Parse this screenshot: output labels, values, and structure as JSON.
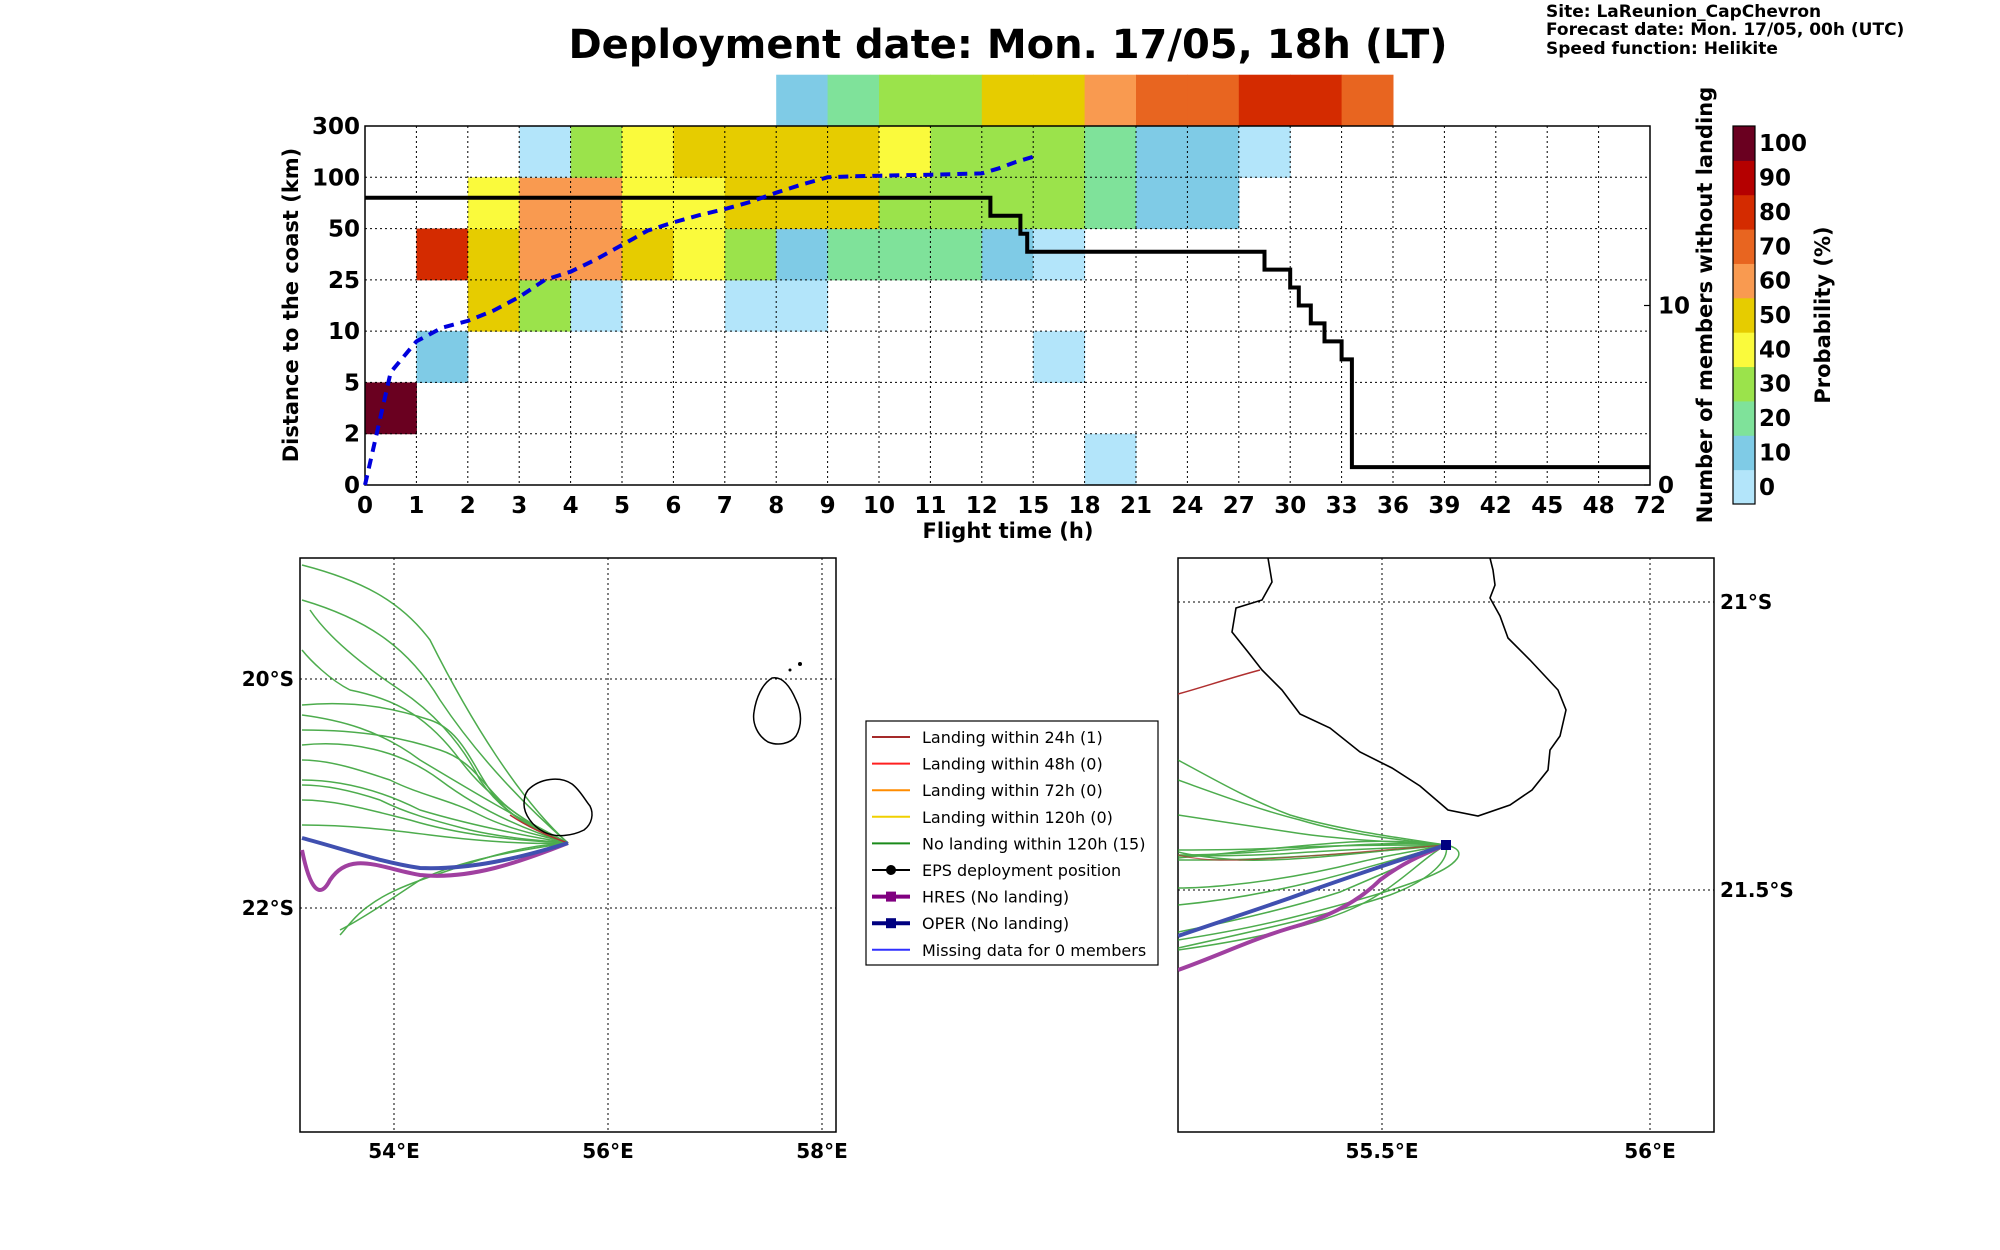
{
  "header": {
    "title": "Deployment date: Mon. 17/05, 18h (LT)",
    "site": "Site: LaReunion_CapChevron",
    "forecast": "Forecast date: Mon. 17/05, 00h (UTC)",
    "speed": "Speed function: Helikite"
  },
  "chart_data": {
    "type": "heatmap",
    "xlabel": "Flight time (h)",
    "ylabel": "Distance to the coast (km)",
    "y2label": "Number of members without landing",
    "colorbar_label": "Probability (%)",
    "x_ticks": [
      "0",
      "1",
      "2",
      "3",
      "4",
      "5",
      "6",
      "7",
      "8",
      "9",
      "10",
      "11",
      "12",
      "15",
      "18",
      "21",
      "24",
      "27",
      "30",
      "33",
      "36",
      "39",
      "42",
      "45",
      "48",
      "72"
    ],
    "y_ticks": [
      "0",
      "2",
      "5",
      "10",
      "25",
      "50",
      "100",
      "300"
    ],
    "y2_ticks": [
      "0",
      "10"
    ],
    "colorbar_ticks": [
      "0",
      "10",
      "20",
      "30",
      "40",
      "50",
      "60",
      "70",
      "80",
      "90",
      "100"
    ],
    "colorbar_colors": [
      "#b3e5fa",
      "#7fcbe6",
      "#7fe29a",
      "#9be34b",
      "#fafa3c",
      "#e6cc00",
      "#f99a50",
      "#e86520",
      "#d42b00",
      "#b50000",
      "#6a0020"
    ],
    "grid": true,
    "cells": [
      {
        "x": 0,
        "y": 1,
        "p": 100
      },
      {
        "x": 1,
        "y": 2,
        "p": 15
      },
      {
        "x": 1,
        "y": 4,
        "p": 85
      },
      {
        "x": 2,
        "y": 3,
        "p": 55
      },
      {
        "x": 2,
        "y": 4,
        "p": 55
      },
      {
        "x": 2,
        "y": 5,
        "p": 45
      },
      {
        "x": 3,
        "y": 3,
        "p": 35
      },
      {
        "x": 3,
        "y": 4,
        "p": 65
      },
      {
        "x": 3,
        "y": 5,
        "p": 65
      },
      {
        "x": 3,
        "y": 6,
        "p": 5
      },
      {
        "x": 4,
        "y": 3,
        "p": 5
      },
      {
        "x": 4,
        "y": 4,
        "p": 65
      },
      {
        "x": 4,
        "y": 5,
        "p": 65
      },
      {
        "x": 4,
        "y": 6,
        "p": 35
      },
      {
        "x": 5,
        "y": 4,
        "p": 55
      },
      {
        "x": 5,
        "y": 5,
        "p": 45
      },
      {
        "x": 5,
        "y": 6,
        "p": 45
      },
      {
        "x": 6,
        "y": 4,
        "p": 45
      },
      {
        "x": 6,
        "y": 5,
        "p": 45
      },
      {
        "x": 6,
        "y": 6,
        "p": 55
      },
      {
        "x": 7,
        "y": 3,
        "p": 5
      },
      {
        "x": 7,
        "y": 4,
        "p": 35
      },
      {
        "x": 7,
        "y": 5,
        "p": 55
      },
      {
        "x": 7,
        "y": 6,
        "p": 55
      },
      {
        "x": 8,
        "y": 3,
        "p": 5
      },
      {
        "x": 8,
        "y": 4,
        "p": 15
      },
      {
        "x": 8,
        "y": 5,
        "p": 55
      },
      {
        "x": 8,
        "y": 6,
        "p": 55
      },
      {
        "x": 8,
        "y": 7,
        "p": 15
      },
      {
        "x": 9,
        "y": 4,
        "p": 25
      },
      {
        "x": 9,
        "y": 5,
        "p": 55
      },
      {
        "x": 9,
        "y": 6,
        "p": 55
      },
      {
        "x": 9,
        "y": 7,
        "p": 25
      },
      {
        "x": 10,
        "y": 4,
        "p": 25
      },
      {
        "x": 10,
        "y": 5,
        "p": 35
      },
      {
        "x": 10,
        "y": 6,
        "p": 45
      },
      {
        "x": 10,
        "y": 7,
        "p": 35
      },
      {
        "x": 11,
        "y": 4,
        "p": 25
      },
      {
        "x": 11,
        "y": 5,
        "p": 35
      },
      {
        "x": 11,
        "y": 6,
        "p": 35
      },
      {
        "x": 11,
        "y": 7,
        "p": 35
      },
      {
        "x": 12,
        "y": 4,
        "p": 15
      },
      {
        "x": 12,
        "y": 5,
        "p": 35
      },
      {
        "x": 12,
        "y": 6,
        "p": 35
      },
      {
        "x": 12,
        "y": 7,
        "p": 55
      },
      {
        "x": 13,
        "y": 2,
        "p": 5
      },
      {
        "x": 13,
        "y": 4,
        "p": 5
      },
      {
        "x": 13,
        "y": 5,
        "p": 35
      },
      {
        "x": 13,
        "y": 6,
        "p": 35
      },
      {
        "x": 13,
        "y": 7,
        "p": 55
      },
      {
        "x": 14,
        "y": 0,
        "p": 5
      },
      {
        "x": 14,
        "y": 5,
        "p": 25
      },
      {
        "x": 14,
        "y": 6,
        "p": 25
      },
      {
        "x": 14,
        "y": 7,
        "p": 65
      },
      {
        "x": 15,
        "y": 5,
        "p": 15
      },
      {
        "x": 15,
        "y": 6,
        "p": 15
      },
      {
        "x": 15,
        "y": 7,
        "p": 75
      },
      {
        "x": 16,
        "y": 5,
        "p": 15
      },
      {
        "x": 16,
        "y": 6,
        "p": 15
      },
      {
        "x": 16,
        "y": 7,
        "p": 75
      },
      {
        "x": 17,
        "y": 6,
        "p": 5
      },
      {
        "x": 17,
        "y": 7,
        "p": 85
      },
      {
        "x": 18,
        "y": 7,
        "p": 85
      },
      {
        "x": 19,
        "y": 7,
        "p": 75
      }
    ],
    "members_without_landing": {
      "x": [
        0,
        12.5,
        12.5,
        14.25,
        14.25,
        14.65,
        14.65,
        28.5,
        28.5,
        30,
        30,
        30.5,
        30.5,
        31.2,
        31.2,
        32,
        32,
        33,
        33,
        33.6,
        33.6,
        72
      ],
      "y": [
        16,
        16,
        15,
        15,
        14,
        14,
        13,
        13,
        12,
        12,
        11,
        11,
        10,
        10,
        9,
        9,
        8,
        8,
        7,
        7,
        1,
        1
      ]
    },
    "mean_distance_km": {
      "x": [
        0,
        0.5,
        1,
        1.5,
        2,
        2.5,
        3,
        3.5,
        4,
        4.5,
        5,
        5.5,
        6,
        6.5,
        7,
        7.5,
        8,
        8.5,
        9,
        9.5,
        10,
        11,
        12,
        13,
        14,
        15
      ],
      "y": [
        0,
        6,
        9,
        11,
        13,
        16,
        20,
        25,
        29,
        35,
        42,
        49,
        56,
        63,
        69,
        76,
        85,
        93,
        100,
        104,
        106,
        110,
        115,
        135,
        160,
        180
      ]
    }
  },
  "maps": {
    "left": {
      "lon_ticks": [
        "54°E",
        "56°E",
        "58°E"
      ],
      "lat_ticks": [
        "20°S",
        "22°S"
      ]
    },
    "right": {
      "lon_ticks": [
        "55.5°E",
        "56°E"
      ],
      "lat_ticks": [
        "21°S",
        "21.5°S"
      ]
    }
  },
  "legend": {
    "items": [
      {
        "label": "Landing within 24h (1)",
        "color": "#a52a2a",
        "marker": "none"
      },
      {
        "label": "Landing within 48h (0)",
        "color": "#ff2020",
        "marker": "none"
      },
      {
        "label": "Landing within 72h (0)",
        "color": "#ff8c00",
        "marker": "none"
      },
      {
        "label": "Landing within 120h (0)",
        "color": "#f0d000",
        "marker": "none"
      },
      {
        "label": "No landing within 120h (15)",
        "color": "#1a8a1a",
        "marker": "none"
      },
      {
        "label": "EPS deployment position",
        "color": "#000000",
        "marker": "circle"
      },
      {
        "label": "HRES (No landing)",
        "color": "#800080",
        "marker": "square"
      },
      {
        "label": "OPER (No landing)",
        "color": "#000080",
        "marker": "square"
      },
      {
        "label": "Missing data for 0 members",
        "color": "#3030ff",
        "marker": "none"
      }
    ]
  }
}
